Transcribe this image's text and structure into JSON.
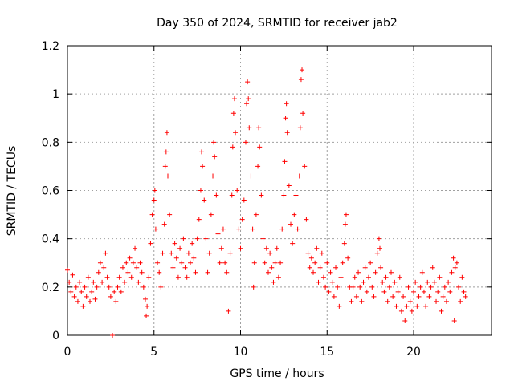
{
  "chart_data": {
    "type": "scatter",
    "title": "Day 350 of 2024, SRMTID for receiver jab2",
    "xlabel": "GPS time / hours",
    "ylabel": "SRMTID / TECUs",
    "xlim": [
      0,
      24.5
    ],
    "ylim": [
      0,
      1.2
    ],
    "xticks": [
      0,
      5,
      10,
      15,
      20
    ],
    "xtick_labels": [
      "0",
      "5",
      "10",
      "15",
      "20"
    ],
    "yticks": [
      0,
      0.2,
      0.4,
      0.6,
      0.8,
      1.0,
      1.2
    ],
    "ytick_labels": [
      "0",
      "0.2",
      "0.4",
      "0.6",
      "0.8",
      "1",
      "1.2"
    ],
    "grid": true,
    "marker": "+",
    "color": "#ff0000",
    "series": [
      {
        "name": "jab2",
        "points": [
          [
            0.0,
            0.27
          ],
          [
            0.1,
            0.22
          ],
          [
            0.2,
            0.18
          ],
          [
            0.3,
            0.25
          ],
          [
            0.4,
            0.16
          ],
          [
            0.5,
            0.2
          ],
          [
            0.6,
            0.14
          ],
          [
            0.7,
            0.22
          ],
          [
            0.8,
            0.18
          ],
          [
            0.9,
            0.12
          ],
          [
            1.0,
            0.2
          ],
          [
            1.1,
            0.16
          ],
          [
            1.2,
            0.24
          ],
          [
            1.3,
            0.14
          ],
          [
            1.4,
            0.18
          ],
          [
            1.5,
            0.22
          ],
          [
            1.6,
            0.15
          ],
          [
            1.7,
            0.2
          ],
          [
            1.8,
            0.26
          ],
          [
            1.9,
            0.3
          ],
          [
            2.0,
            0.22
          ],
          [
            2.1,
            0.28
          ],
          [
            2.2,
            0.34
          ],
          [
            2.3,
            0.24
          ],
          [
            2.4,
            0.2
          ],
          [
            2.5,
            0.16
          ],
          [
            2.6,
            0.0
          ],
          [
            2.7,
            0.18
          ],
          [
            2.8,
            0.14
          ],
          [
            2.9,
            0.2
          ],
          [
            3.0,
            0.24
          ],
          [
            3.1,
            0.18
          ],
          [
            3.2,
            0.28
          ],
          [
            3.3,
            0.22
          ],
          [
            3.4,
            0.3
          ],
          [
            3.5,
            0.26
          ],
          [
            3.6,
            0.32
          ],
          [
            3.7,
            0.24
          ],
          [
            3.8,
            0.3
          ],
          [
            3.9,
            0.36
          ],
          [
            4.0,
            0.28
          ],
          [
            4.1,
            0.22
          ],
          [
            4.2,
            0.3
          ],
          [
            4.3,
            0.26
          ],
          [
            4.4,
            0.2
          ],
          [
            4.5,
            0.15
          ],
          [
            4.55,
            0.08
          ],
          [
            4.6,
            0.12
          ],
          [
            4.7,
            0.24
          ],
          [
            4.8,
            0.38
          ],
          [
            4.9,
            0.5
          ],
          [
            5.0,
            0.56
          ],
          [
            5.05,
            0.6
          ],
          [
            5.1,
            0.44
          ],
          [
            5.2,
            0.3
          ],
          [
            5.3,
            0.26
          ],
          [
            5.4,
            0.2
          ],
          [
            5.5,
            0.34
          ],
          [
            5.6,
            0.46
          ],
          [
            5.65,
            0.7
          ],
          [
            5.7,
            0.76
          ],
          [
            5.75,
            0.84
          ],
          [
            5.8,
            0.66
          ],
          [
            5.9,
            0.5
          ],
          [
            6.0,
            0.34
          ],
          [
            6.1,
            0.28
          ],
          [
            6.2,
            0.38
          ],
          [
            6.3,
            0.32
          ],
          [
            6.4,
            0.24
          ],
          [
            6.5,
            0.36
          ],
          [
            6.6,
            0.3
          ],
          [
            6.7,
            0.4
          ],
          [
            6.8,
            0.28
          ],
          [
            6.9,
            0.24
          ],
          [
            7.0,
            0.34
          ],
          [
            7.1,
            0.3
          ],
          [
            7.2,
            0.38
          ],
          [
            7.3,
            0.32
          ],
          [
            7.4,
            0.26
          ],
          [
            7.5,
            0.4
          ],
          [
            7.6,
            0.48
          ],
          [
            7.7,
            0.6
          ],
          [
            7.75,
            0.76
          ],
          [
            7.8,
            0.7
          ],
          [
            7.9,
            0.56
          ],
          [
            8.0,
            0.4
          ],
          [
            8.1,
            0.26
          ],
          [
            8.2,
            0.34
          ],
          [
            8.3,
            0.5
          ],
          [
            8.4,
            0.66
          ],
          [
            8.45,
            0.8
          ],
          [
            8.5,
            0.74
          ],
          [
            8.6,
            0.58
          ],
          [
            8.7,
            0.42
          ],
          [
            8.8,
            0.3
          ],
          [
            8.9,
            0.36
          ],
          [
            9.0,
            0.44
          ],
          [
            9.1,
            0.3
          ],
          [
            9.2,
            0.26
          ],
          [
            9.3,
            0.1
          ],
          [
            9.4,
            0.34
          ],
          [
            9.5,
            0.58
          ],
          [
            9.55,
            0.78
          ],
          [
            9.6,
            0.92
          ],
          [
            9.65,
            0.98
          ],
          [
            9.7,
            0.84
          ],
          [
            9.8,
            0.6
          ],
          [
            9.9,
            0.44
          ],
          [
            10.0,
            0.36
          ],
          [
            10.1,
            0.48
          ],
          [
            10.2,
            0.56
          ],
          [
            10.3,
            0.8
          ],
          [
            10.35,
            0.96
          ],
          [
            10.4,
            1.05
          ],
          [
            10.45,
            0.98
          ],
          [
            10.5,
            0.86
          ],
          [
            10.6,
            0.66
          ],
          [
            10.7,
            0.44
          ],
          [
            10.75,
            0.2
          ],
          [
            10.8,
            0.3
          ],
          [
            10.9,
            0.5
          ],
          [
            11.0,
            0.7
          ],
          [
            11.05,
            0.86
          ],
          [
            11.1,
            0.78
          ],
          [
            11.2,
            0.58
          ],
          [
            11.3,
            0.4
          ],
          [
            11.4,
            0.3
          ],
          [
            11.5,
            0.36
          ],
          [
            11.6,
            0.26
          ],
          [
            11.7,
            0.34
          ],
          [
            11.8,
            0.28
          ],
          [
            11.9,
            0.22
          ],
          [
            12.0,
            0.3
          ],
          [
            12.1,
            0.36
          ],
          [
            12.2,
            0.24
          ],
          [
            12.3,
            0.3
          ],
          [
            12.4,
            0.44
          ],
          [
            12.5,
            0.58
          ],
          [
            12.55,
            0.72
          ],
          [
            12.6,
            0.9
          ],
          [
            12.65,
            0.96
          ],
          [
            12.7,
            0.84
          ],
          [
            12.8,
            0.62
          ],
          [
            12.9,
            0.46
          ],
          [
            13.0,
            0.38
          ],
          [
            13.1,
            0.5
          ],
          [
            13.2,
            0.58
          ],
          [
            13.3,
            0.44
          ],
          [
            13.4,
            0.66
          ],
          [
            13.45,
            0.86
          ],
          [
            13.5,
            1.06
          ],
          [
            13.55,
            1.1
          ],
          [
            13.6,
            0.92
          ],
          [
            13.7,
            0.7
          ],
          [
            13.8,
            0.48
          ],
          [
            13.9,
            0.34
          ],
          [
            14.0,
            0.28
          ],
          [
            14.1,
            0.32
          ],
          [
            14.2,
            0.26
          ],
          [
            14.3,
            0.3
          ],
          [
            14.4,
            0.36
          ],
          [
            14.5,
            0.22
          ],
          [
            14.6,
            0.28
          ],
          [
            14.7,
            0.34
          ],
          [
            14.8,
            0.24
          ],
          [
            14.9,
            0.2
          ],
          [
            15.0,
            0.3
          ],
          [
            15.1,
            0.18
          ],
          [
            15.2,
            0.26
          ],
          [
            15.3,
            0.22
          ],
          [
            15.4,
            0.16
          ],
          [
            15.5,
            0.28
          ],
          [
            15.6,
            0.2
          ],
          [
            15.7,
            0.12
          ],
          [
            15.8,
            0.24
          ],
          [
            15.9,
            0.3
          ],
          [
            16.0,
            0.38
          ],
          [
            16.05,
            0.46
          ],
          [
            16.1,
            0.5
          ],
          [
            16.2,
            0.32
          ],
          [
            16.3,
            0.2
          ],
          [
            16.4,
            0.14
          ],
          [
            16.5,
            0.2
          ],
          [
            16.6,
            0.24
          ],
          [
            16.7,
            0.16
          ],
          [
            16.8,
            0.26
          ],
          [
            16.9,
            0.2
          ],
          [
            17.0,
            0.14
          ],
          [
            17.1,
            0.22
          ],
          [
            17.2,
            0.28
          ],
          [
            17.3,
            0.18
          ],
          [
            17.4,
            0.24
          ],
          [
            17.5,
            0.3
          ],
          [
            17.6,
            0.2
          ],
          [
            17.7,
            0.16
          ],
          [
            17.8,
            0.26
          ],
          [
            17.9,
            0.34
          ],
          [
            18.0,
            0.4
          ],
          [
            18.05,
            0.36
          ],
          [
            18.1,
            0.28
          ],
          [
            18.2,
            0.22
          ],
          [
            18.3,
            0.18
          ],
          [
            18.4,
            0.24
          ],
          [
            18.5,
            0.14
          ],
          [
            18.6,
            0.2
          ],
          [
            18.7,
            0.26
          ],
          [
            18.8,
            0.16
          ],
          [
            18.9,
            0.22
          ],
          [
            19.0,
            0.12
          ],
          [
            19.1,
            0.18
          ],
          [
            19.2,
            0.24
          ],
          [
            19.3,
            0.1
          ],
          [
            19.4,
            0.16
          ],
          [
            19.5,
            0.06
          ],
          [
            19.6,
            0.12
          ],
          [
            19.7,
            0.2
          ],
          [
            19.8,
            0.14
          ],
          [
            19.9,
            0.1
          ],
          [
            20.0,
            0.18
          ],
          [
            20.1,
            0.22
          ],
          [
            20.2,
            0.12
          ],
          [
            20.3,
            0.16
          ],
          [
            20.4,
            0.2
          ],
          [
            20.5,
            0.26
          ],
          [
            20.6,
            0.18
          ],
          [
            20.7,
            0.12
          ],
          [
            20.8,
            0.22
          ],
          [
            20.9,
            0.16
          ],
          [
            21.0,
            0.2
          ],
          [
            21.1,
            0.28
          ],
          [
            21.2,
            0.22
          ],
          [
            21.3,
            0.14
          ],
          [
            21.4,
            0.18
          ],
          [
            21.5,
            0.24
          ],
          [
            21.6,
            0.1
          ],
          [
            21.7,
            0.16
          ],
          [
            21.8,
            0.2
          ],
          [
            21.9,
            0.14
          ],
          [
            22.0,
            0.22
          ],
          [
            22.1,
            0.18
          ],
          [
            22.2,
            0.26
          ],
          [
            22.3,
            0.32
          ],
          [
            22.35,
            0.06
          ],
          [
            22.4,
            0.28
          ],
          [
            22.5,
            0.3
          ],
          [
            22.6,
            0.2
          ],
          [
            22.7,
            0.14
          ],
          [
            22.8,
            0.24
          ],
          [
            22.9,
            0.18
          ],
          [
            23.0,
            0.16
          ]
        ]
      }
    ]
  }
}
